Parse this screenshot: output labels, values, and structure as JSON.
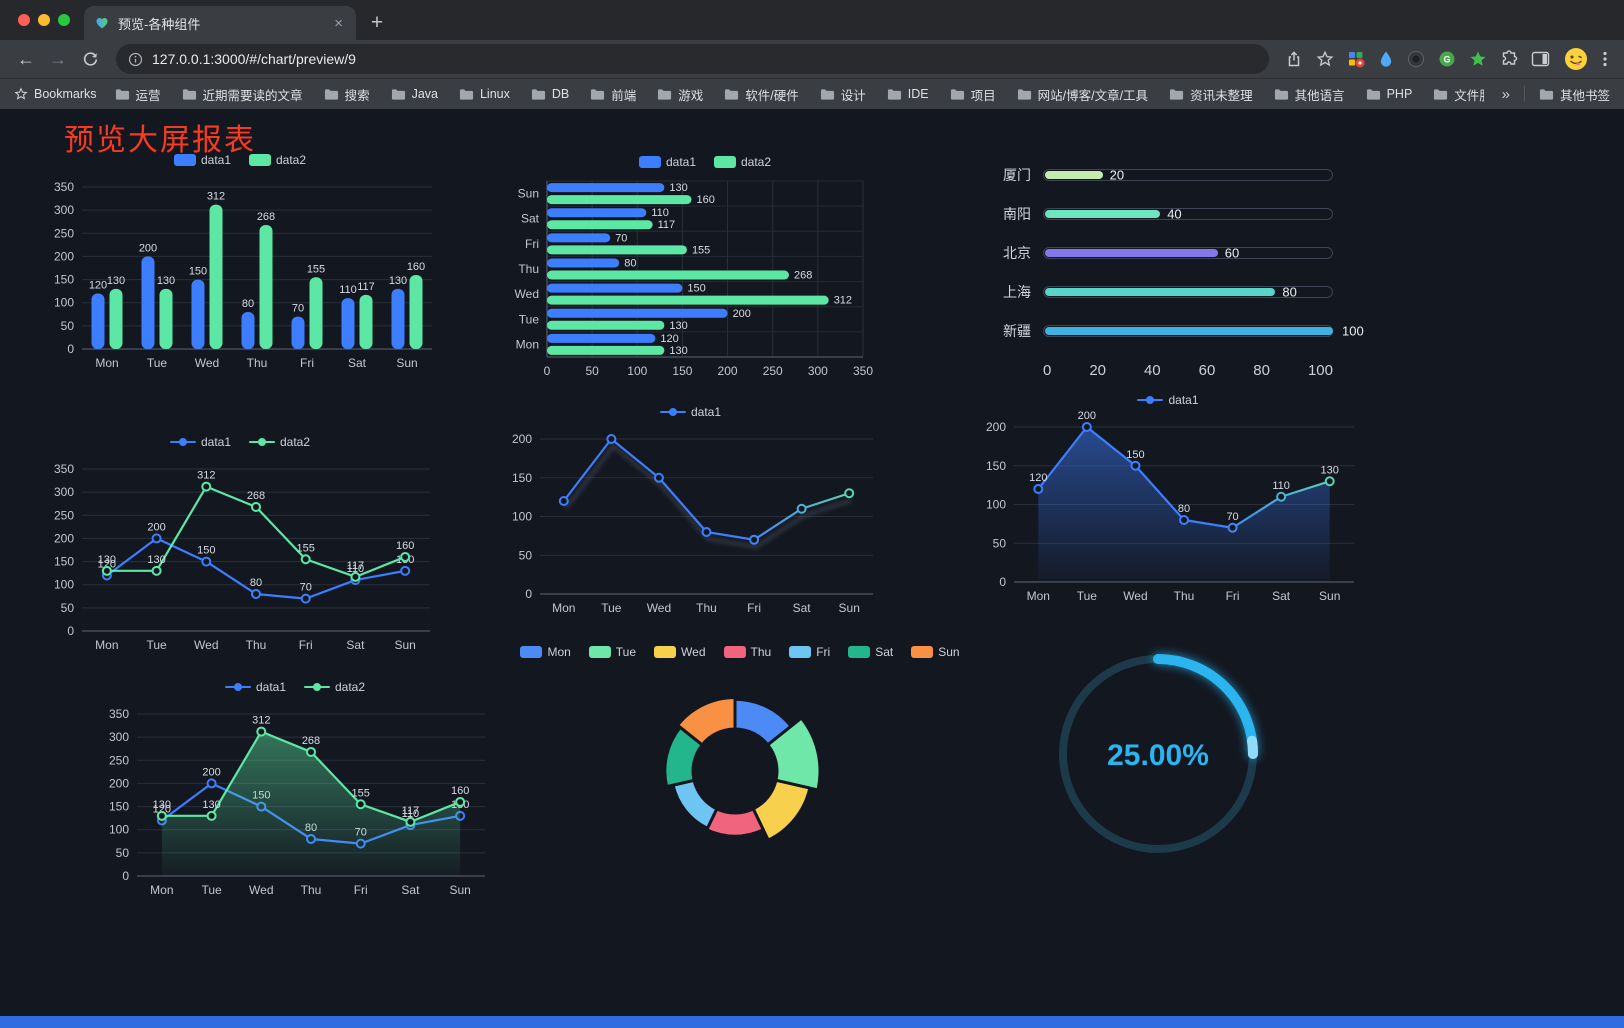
{
  "browser": {
    "traffic_lights": {
      "close": "#FF5F57",
      "minimize": "#FEBC2E",
      "zoom": "#28C840"
    },
    "tab": {
      "title": "预览-各种组件",
      "close": "×"
    },
    "new_tab": "+",
    "toolbar": {
      "back": "←",
      "forward": "→",
      "url": "127.0.0.1:3000/#/chart/preview/9",
      "icon_names": [
        "reload-icon",
        "info-icon",
        "share-icon",
        "bookmark-star-icon",
        "extensions-grid-icon",
        "drop-extension-icon",
        "dark-extension-icon",
        "green-extension-icon",
        "star-extension-icon",
        "puzzle-icon",
        "side-panel-icon",
        "profile-avatar",
        "menu-icon"
      ]
    },
    "bookmarks": {
      "label": "Bookmarks",
      "items": [
        "运营",
        "近期需要读的文章",
        "搜索",
        "Java",
        "Linux",
        "DB",
        "前端",
        "游戏",
        "软件/硬件",
        "设计",
        "IDE",
        "项目",
        "网站/博客/文章/工具",
        "资讯未整理",
        "其他语言",
        "PHP",
        "文件服务器"
      ],
      "overflow": "»",
      "other": "其他书签"
    }
  },
  "page": {
    "title": "预览大屏报表",
    "accent": {
      "title_color": "#f83b20",
      "bottom_bar": "#2e6ce0"
    }
  },
  "chart_data": [
    {
      "id": "c1",
      "type": "bar",
      "categories": [
        "Mon",
        "Tue",
        "Wed",
        "Thu",
        "Fri",
        "Sat",
        "Sun"
      ],
      "series": [
        {
          "name": "data1",
          "color": "#3D7EFF",
          "values": [
            120,
            200,
            150,
            80,
            70,
            110,
            130
          ]
        },
        {
          "name": "data2",
          "color": "#5CE8A4",
          "values": [
            130,
            130,
            312,
            268,
            155,
            117,
            160
          ]
        }
      ],
      "ylim": [
        0,
        350
      ],
      "ystep": 50,
      "labels": true
    },
    {
      "id": "c2",
      "type": "hbar",
      "categories": [
        "Mon",
        "Tue",
        "Wed",
        "Thu",
        "Fri",
        "Sat",
        "Sun"
      ],
      "series": [
        {
          "name": "data1",
          "color": "#3D7EFF",
          "values": [
            120,
            200,
            150,
            80,
            70,
            110,
            130
          ]
        },
        {
          "name": "data2",
          "color": "#5CE8A4",
          "values": [
            130,
            130,
            312,
            268,
            155,
            117,
            160
          ]
        }
      ],
      "xlim": [
        0,
        350
      ],
      "xstep": 50,
      "labels": true
    },
    {
      "id": "c3",
      "type": "progress",
      "rows": [
        {
          "label": "厦门",
          "value": 20,
          "color": "#C4EBAD"
        },
        {
          "label": "南阳",
          "value": 40,
          "color": "#6BE6C1"
        },
        {
          "label": "北京",
          "value": 60,
          "color": "#8378EA"
        },
        {
          "label": "上海",
          "value": 80,
          "color": "#58D5C9"
        },
        {
          "label": "新疆",
          "value": 100,
          "color": "#3FB1E3"
        }
      ],
      "max": 100,
      "xticks": [
        0,
        20,
        40,
        60,
        80,
        100
      ]
    },
    {
      "id": "c4",
      "type": "line",
      "categories": [
        "Mon",
        "Tue",
        "Wed",
        "Thu",
        "Fri",
        "Sat",
        "Sun"
      ],
      "series": [
        {
          "name": "data1",
          "color": "#3D7EFF",
          "values": [
            120,
            200,
            150,
            80,
            70,
            110,
            130
          ]
        },
        {
          "name": "data2",
          "color": "#5CE8A4",
          "values": [
            130,
            130,
            312,
            268,
            155,
            117,
            160
          ]
        }
      ],
      "ylim": [
        0,
        350
      ],
      "ystep": 50,
      "labels": true
    },
    {
      "id": "c5",
      "type": "line",
      "categories": [
        "Mon",
        "Tue",
        "Wed",
        "Thu",
        "Fri",
        "Sat",
        "Sun"
      ],
      "series": [
        {
          "name": "data1",
          "color": "#3D7EFF",
          "gradient_to": "#5CE8A4",
          "shadow": true,
          "values": [
            120,
            200,
            150,
            80,
            70,
            110,
            130
          ]
        }
      ],
      "ylim": [
        0,
        200
      ],
      "ystep": 50,
      "labels": false
    },
    {
      "id": "c6",
      "type": "line",
      "categories": [
        "Mon",
        "Tue",
        "Wed",
        "Thu",
        "Fri",
        "Sat",
        "Sun"
      ],
      "series": [
        {
          "name": "data1",
          "color": "#3D7EFF",
          "gradient_to": "#5CE8A4",
          "area": true,
          "values": [
            120,
            200,
            150,
            80,
            70,
            110,
            130
          ]
        }
      ],
      "ylim": [
        0,
        200
      ],
      "ystep": 50,
      "labels": true
    },
    {
      "id": "c7",
      "type": "line",
      "categories": [
        "Mon",
        "Tue",
        "Wed",
        "Thu",
        "Fri",
        "Sat",
        "Sun"
      ],
      "series": [
        {
          "name": "data1",
          "color": "#3D7EFF",
          "values": [
            120,
            200,
            150,
            80,
            70,
            110,
            130
          ]
        },
        {
          "name": "data2",
          "color": "#5CE8A4",
          "area": true,
          "values": [
            130,
            130,
            312,
            268,
            155,
            117,
            160
          ]
        }
      ],
      "ylim": [
        0,
        350
      ],
      "ystep": 50,
      "labels": true
    },
    {
      "id": "c8",
      "type": "rose",
      "items": [
        {
          "name": "Mon",
          "value": 120,
          "color": "#4C8BF5"
        },
        {
          "name": "Tue",
          "value": 200,
          "color": "#6EE7A8"
        },
        {
          "name": "Wed",
          "value": 150,
          "color": "#F7D14E"
        },
        {
          "name": "Thu",
          "value": 80,
          "color": "#F0657D"
        },
        {
          "name": "Fri",
          "value": 70,
          "color": "#6EC5F2"
        },
        {
          "name": "Sat",
          "value": 110,
          "color": "#23B68C"
        },
        {
          "name": "Sun",
          "value": 130,
          "color": "#F89144"
        }
      ]
    },
    {
      "id": "c9",
      "type": "gauge",
      "percent": 25,
      "label": "25.00%",
      "color": "#2BB5F0"
    }
  ]
}
